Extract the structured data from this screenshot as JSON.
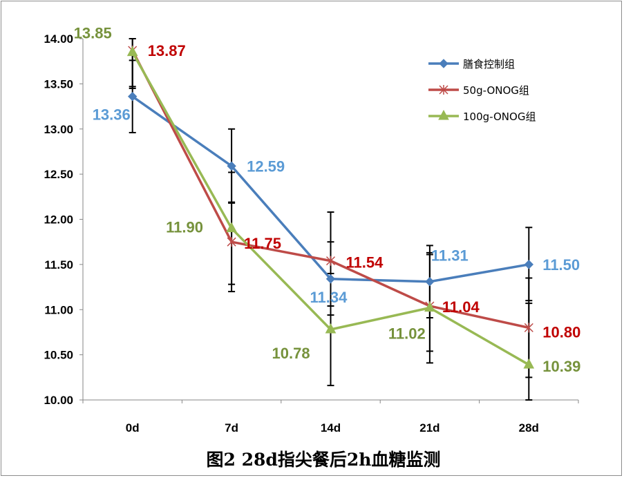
{
  "chart_data": {
    "type": "line",
    "title": "图2 28d指尖餐后2h血糖监测",
    "xlabel": "",
    "ylabel": "",
    "categories": [
      "0d",
      "7d",
      "14d",
      "21d",
      "28d"
    ],
    "ylim": [
      10.0,
      14.0
    ],
    "yticks": [
      "10.00",
      "10.50",
      "11.00",
      "11.50",
      "12.00",
      "12.50",
      "13.00",
      "13.50",
      "14.00"
    ],
    "grid": false,
    "legend_position": "top-right",
    "series": [
      {
        "name": "膳食控制组",
        "color": "#4a7ebb",
        "marker": "diamond",
        "values": [
          13.36,
          12.59,
          11.34,
          11.31,
          11.5
        ],
        "labels": [
          "13.36",
          "12.59",
          "11.34",
          "11.31",
          "11.50"
        ],
        "label_color": "#5b9bd5",
        "err_low": [
          12.96,
          12.19,
          10.94,
          10.91,
          11.1
        ],
        "err_high": [
          13.76,
          13.0,
          11.75,
          11.71,
          11.91
        ]
      },
      {
        "name": "50g-ONOG组",
        "color": "#be4b48",
        "marker": "star",
        "values": [
          13.87,
          11.75,
          11.54,
          11.04,
          10.8
        ],
        "labels": [
          "13.87",
          "11.75",
          "11.54",
          "11.04",
          "10.80"
        ],
        "label_color": "#c00000",
        "err_low": [
          13.47,
          11.28,
          11.04,
          10.54,
          10.25
        ],
        "err_high": [
          14.0,
          12.18,
          12.08,
          11.61,
          11.35
        ]
      },
      {
        "name": "100g-ONOG组",
        "color": "#98b954",
        "marker": "triangle",
        "values": [
          13.85,
          11.9,
          10.78,
          11.02,
          10.39
        ],
        "labels": [
          "13.85",
          "11.90",
          "10.78",
          "11.02",
          "10.39"
        ],
        "label_color": "#76923c",
        "err_low": [
          13.45,
          11.2,
          10.16,
          10.41,
          10.0
        ],
        "err_high": [
          14.0,
          12.52,
          11.4,
          11.63,
          11.07
        ]
      }
    ]
  }
}
